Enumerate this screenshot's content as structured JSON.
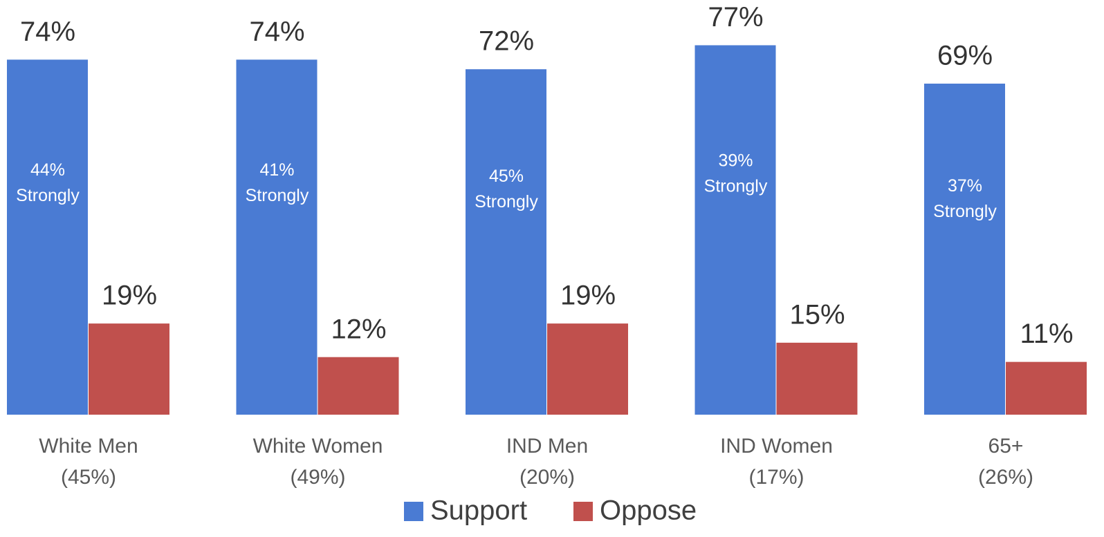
{
  "chart_data": {
    "type": "bar",
    "categories": [
      [
        "White Men",
        "(45%)"
      ],
      [
        "White Women",
        "(49%)"
      ],
      [
        "IND Men",
        "(20%)"
      ],
      [
        "IND Women",
        "(17%)"
      ],
      [
        "65+",
        "(26%)"
      ]
    ],
    "series": [
      {
        "name": "Support",
        "color": "#4a7bd3",
        "values": [
          74,
          74,
          72,
          77,
          69
        ],
        "value_labels": [
          "74%",
          "74%",
          "72%",
          "77%",
          "69%"
        ],
        "inner_labels": [
          [
            "44%",
            "Strongly"
          ],
          [
            "41%",
            "Strongly"
          ],
          [
            "45%",
            "Strongly"
          ],
          [
            "39%",
            "Strongly"
          ],
          [
            "37%",
            "Strongly"
          ]
        ]
      },
      {
        "name": "Oppose",
        "color": "#c0504d",
        "values": [
          19,
          12,
          19,
          15,
          11
        ],
        "value_labels": [
          "19%",
          "12%",
          "19%",
          "15%",
          "11%"
        ]
      }
    ],
    "ylim": [
      0,
      86
    ],
    "legend": "bottom"
  }
}
